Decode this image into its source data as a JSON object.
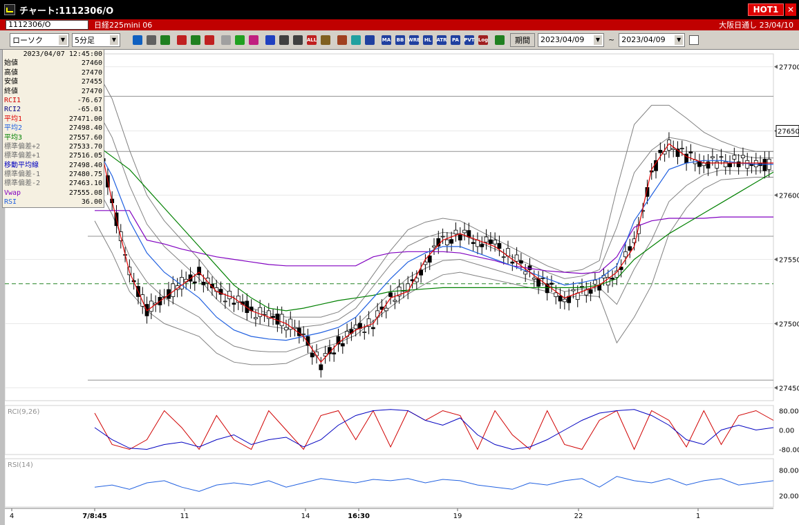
{
  "window": {
    "title": "チャート:1112306/O",
    "hot_label": "HOT1"
  },
  "symbol_bar": {
    "code": "1112306/O",
    "name": "日経225mini 06",
    "right_text": "大阪日通し 23/04/10"
  },
  "toolbar": {
    "chart_type": "ローソク",
    "interval": "5分足",
    "period_label": "期間",
    "date_from": "2023/04/09",
    "tilde": "~",
    "date_to": "2023/04/09",
    "buttons": [
      {
        "name": "zoom-icon",
        "label": "",
        "color": "#1060c0"
      },
      {
        "name": "layout-icon",
        "label": "",
        "color": "#606060"
      },
      {
        "name": "down-arrow-icon",
        "label": "",
        "color": "#208020"
      },
      {
        "name": "search-chart-icon",
        "label": "",
        "color": "#c02020"
      },
      {
        "name": "chart-compare-icon",
        "label": "",
        "color": "#208020"
      },
      {
        "name": "arrows-icon",
        "label": "",
        "color": "#c02020"
      },
      {
        "name": "disabled-icon",
        "label": "",
        "color": "#a0a0a0"
      },
      {
        "name": "pencil-icon",
        "label": "",
        "color": "#20a020"
      },
      {
        "name": "cursor-icon",
        "label": "",
        "color": "#c02080"
      },
      {
        "name": "undo-icon",
        "label": "",
        "color": "#2040c0"
      },
      {
        "name": "candle-in-icon",
        "label": "",
        "color": "#404040"
      },
      {
        "name": "candle-out-icon",
        "label": "",
        "color": "#404040"
      },
      {
        "name": "all-icon",
        "label": "ALL",
        "color": "#c02020"
      },
      {
        "name": "gear-icon",
        "label": "",
        "color": "#806020"
      },
      {
        "name": "wrench-icon",
        "label": "",
        "color": "#a04020"
      },
      {
        "name": "palette-icon",
        "label": "",
        "color": "#20a0a0"
      },
      {
        "name": "grid-indicator-icon",
        "label": "",
        "color": "#2040a0"
      },
      {
        "name": "ma-icon",
        "label": "MA",
        "color": "#2040a0"
      },
      {
        "name": "bb-icon",
        "label": "BB",
        "color": "#2040a0"
      },
      {
        "name": "wre-icon",
        "label": "WRE",
        "color": "#2040a0"
      },
      {
        "name": "hl-icon",
        "label": "HL",
        "color": "#2040a0"
      },
      {
        "name": "atr-icon",
        "label": "ATR",
        "color": "#2040a0"
      },
      {
        "name": "pa-icon",
        "label": "PA",
        "color": "#2040a0"
      },
      {
        "name": "pvt-icon",
        "label": "PVT",
        "color": "#2040a0"
      },
      {
        "name": "log-icon",
        "label": "Log",
        "color": "#a02020"
      },
      {
        "name": "export-icon",
        "label": "",
        "color": "#208020"
      }
    ]
  },
  "info_panel": {
    "datetime": "2023/04/07 12:45:00",
    "rows": [
      {
        "label": "始値",
        "value": "27460",
        "color": "#000000"
      },
      {
        "label": "高値",
        "value": "27470",
        "color": "#000000"
      },
      {
        "label": "安値",
        "value": "27455",
        "color": "#000000"
      },
      {
        "label": "終値",
        "value": "27470",
        "color": "#000000"
      },
      {
        "label": "RCI1",
        "value": "-76.67",
        "color": "#d00000"
      },
      {
        "label": "RCI2",
        "value": "-65.01",
        "color": "#000080"
      },
      {
        "label": "平均1",
        "value": "27471.00",
        "color": "#e00000"
      },
      {
        "label": "平均2",
        "value": "27498.40",
        "color": "#2060e0"
      },
      {
        "label": "平均3",
        "value": "27557.60",
        "color": "#008000"
      },
      {
        "label": "標準偏差+2",
        "value": "27533.70",
        "color": "#707070"
      },
      {
        "label": "標準偏差+1",
        "value": "27516.05",
        "color": "#707070"
      },
      {
        "label": "移動平均線",
        "value": "27498.40",
        "color": "#0000c0"
      },
      {
        "label": "標準偏差-1",
        "value": "27480.75",
        "color": "#707070"
      },
      {
        "label": "標準偏差-2",
        "value": "27463.10",
        "color": "#707070"
      },
      {
        "label": "Vwap",
        "value": "27555.08",
        "color": "#8000c0"
      },
      {
        "label": "RSI",
        "value": "36.00",
        "color": "#2060e0"
      }
    ]
  },
  "chart_data": {
    "type": "line",
    "price_axis": {
      "ticks": [
        "27700",
        "27650",
        "27600",
        "27550",
        "27500",
        "27450"
      ],
      "ylim": [
        27440,
        27710
      ],
      "current_price": "27650"
    },
    "rci_panel": {
      "label": "RCI(9,26)",
      "ticks": [
        "80.00",
        "0.00",
        "-80.00"
      ]
    },
    "rsi_panel": {
      "label": "RSI(14)",
      "ticks": [
        "80.00",
        "20.00"
      ]
    },
    "x_ticks": [
      "4",
      "7/8:45",
      "11",
      "14",
      "16:30",
      "19",
      "22",
      "1"
    ],
    "series": [
      {
        "name": "平均1",
        "color": "#e00000",
        "values": [
          27660,
          27595,
          27540,
          27510,
          27520,
          27530,
          27540,
          27525,
          27520,
          27510,
          27505,
          27500,
          27490,
          27470,
          27485,
          27495,
          27500,
          27520,
          27525,
          27550,
          27565,
          27570,
          27565,
          27560,
          27550,
          27540,
          27530,
          27520,
          27525,
          27530,
          27540,
          27560,
          27620,
          27640,
          27630,
          27625,
          27625,
          27625,
          27625,
          27625
        ]
      },
      {
        "name": "平均2",
        "color": "#2060e0",
        "values": [
          27640,
          27615,
          27580,
          27555,
          27540,
          27530,
          27520,
          27505,
          27495,
          27490,
          27488,
          27487,
          27490,
          27493,
          27497,
          27505,
          27520,
          27535,
          27548,
          27555,
          27560,
          27560,
          27555,
          27550,
          27545,
          27540,
          27535,
          27530,
          27532,
          27535,
          27545,
          27580,
          27600,
          27620,
          27625,
          27627,
          27627,
          27625,
          27624,
          27624
        ]
      },
      {
        "name": "平均3",
        "color": "#008000",
        "values": [
          27640,
          27630,
          27620,
          27605,
          27590,
          27575,
          27560,
          27545,
          27530,
          27520,
          27512,
          27510,
          27512,
          27515,
          27518,
          27520,
          27522,
          27525,
          27526,
          27527,
          27528,
          27528,
          27528,
          27528,
          27528,
          27528,
          27528,
          27528,
          27528,
          27530,
          27535,
          27550,
          27560,
          27570,
          27578,
          27586,
          27594,
          27602,
          27610,
          27618
        ]
      },
      {
        "name": "Vwap",
        "color": "#8000c0",
        "values": [
          27588,
          27588,
          27588,
          27565,
          27562,
          27558,
          27555,
          27552,
          27550,
          27548,
          27546,
          27545,
          27545,
          27545,
          27545,
          27545,
          27552,
          27555,
          27556,
          27556,
          27556,
          27555,
          27552,
          27549,
          27545,
          27543,
          27541,
          27540,
          27539,
          27540,
          27552,
          27575,
          27580,
          27582,
          27582,
          27582,
          27583,
          27583,
          27583,
          27583
        ]
      },
      {
        "name": "RCI1",
        "color": "#d00000",
        "values": [
          70,
          -60,
          -80,
          -40,
          80,
          10,
          -80,
          60,
          -40,
          -80,
          80,
          0,
          -80,
          60,
          80,
          -40,
          80,
          -70,
          80,
          40,
          80,
          60,
          -80,
          80,
          -20,
          -80,
          80,
          -60,
          -80,
          40,
          80,
          -80,
          80,
          40,
          -70,
          80,
          -60,
          60,
          80,
          40
        ]
      },
      {
        "name": "RCI2",
        "color": "#0000c0",
        "values": [
          10,
          -40,
          -75,
          -80,
          -60,
          -50,
          -70,
          -40,
          -20,
          -60,
          -40,
          -30,
          -70,
          -40,
          20,
          60,
          80,
          85,
          80,
          40,
          20,
          50,
          -20,
          -60,
          -80,
          -70,
          -40,
          0,
          40,
          70,
          80,
          85,
          60,
          20,
          -40,
          -60,
          0,
          20,
          0,
          10
        ]
      },
      {
        "name": "RSI",
        "color": "#2060e0",
        "values": [
          40,
          45,
          35,
          50,
          55,
          40,
          30,
          45,
          50,
          45,
          55,
          40,
          50,
          60,
          55,
          50,
          58,
          55,
          60,
          50,
          58,
          55,
          45,
          40,
          35,
          50,
          45,
          55,
          60,
          40,
          65,
          55,
          50,
          60,
          45,
          55,
          60,
          45,
          50,
          55
        ]
      }
    ]
  }
}
